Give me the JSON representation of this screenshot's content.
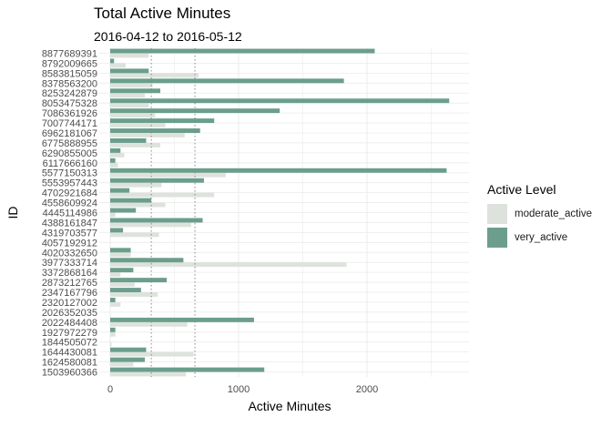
{
  "chart_data": {
    "type": "bar",
    "orientation": "horizontal",
    "title": "Total Active Minutes",
    "subtitle": "2016-04-12 to 2016-05-12",
    "xlabel": "Active Minutes",
    "ylabel": "ID",
    "xlim": [
      0,
      2800
    ],
    "xticks": [
      0,
      1000,
      2000
    ],
    "xtick_labels": [
      "0",
      "1000",
      "2000"
    ],
    "grid": true,
    "reference_lines": [
      {
        "axis": "x",
        "value": 320,
        "style": "dotted"
      },
      {
        "axis": "x",
        "value": 660,
        "style": "dotted"
      }
    ],
    "legend": {
      "title": "Active Level",
      "position": "right"
    },
    "categories": [
      "8877689391",
      "8792009665",
      "8583815059",
      "8378563200",
      "8253242879",
      "8053475328",
      "7086361926",
      "7007744171",
      "6962181067",
      "6775888955",
      "6290855005",
      "6117666160",
      "5577150313",
      "5553957443",
      "4702921684",
      "4558609924",
      "4445114986",
      "4388161847",
      "4319703577",
      "4057192912",
      "4020332650",
      "3977333714",
      "3372868164",
      "2873212765",
      "2347167796",
      "2320127002",
      "2026352035",
      "2022484408",
      "1927972279",
      "1844505072",
      "1644430081",
      "1624580081",
      "1503960366"
    ],
    "series": [
      {
        "name": "moderate_active",
        "color": "#dde3dc",
        "values": [
          300,
          120,
          690,
          330,
          270,
          300,
          350,
          430,
          580,
          390,
          110,
          60,
          900,
          400,
          810,
          430,
          40,
          630,
          380,
          0,
          160,
          1840,
          80,
          190,
          370,
          80,
          0,
          600,
          40,
          10,
          650,
          180,
          590
        ]
      },
      {
        "name": "very_active",
        "color": "#6b9e8c",
        "values": [
          2060,
          30,
          300,
          1820,
          390,
          2640,
          1320,
          810,
          700,
          280,
          80,
          40,
          2620,
          730,
          150,
          320,
          200,
          720,
          100,
          0,
          160,
          570,
          180,
          440,
          240,
          40,
          0,
          1120,
          40,
          0,
          280,
          270,
          1200
        ]
      }
    ]
  }
}
